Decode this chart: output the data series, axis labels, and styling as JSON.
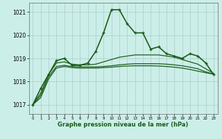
{
  "title": "Graphe pression niveau de la mer (hPa)",
  "background_color": "#cceee8",
  "grid_color": "#aacccc",
  "line_color": "#1a5c1a",
  "xlim": [
    -0.5,
    23.5
  ],
  "ylim": [
    1016.6,
    1021.4
  ],
  "yticks": [
    1017,
    1018,
    1019,
    1020,
    1021
  ],
  "xticks": [
    0,
    1,
    2,
    3,
    4,
    5,
    6,
    7,
    8,
    9,
    10,
    11,
    12,
    13,
    14,
    15,
    16,
    17,
    18,
    19,
    20,
    21,
    22,
    23
  ],
  "series": [
    {
      "x": [
        0,
        1,
        2,
        3,
        4,
        5,
        6,
        7,
        8,
        9,
        10,
        11,
        12,
        13,
        14,
        15,
        16,
        17,
        18,
        19,
        20,
        21,
        22,
        23
      ],
      "y": [
        1017.0,
        1017.7,
        1018.3,
        1018.9,
        1019.0,
        1018.7,
        1018.7,
        1018.8,
        1019.3,
        1020.1,
        1021.1,
        1021.1,
        1020.5,
        1020.1,
        1020.1,
        1019.4,
        1019.5,
        1019.2,
        1019.1,
        1019.0,
        1019.2,
        1019.1,
        1018.8,
        1018.3
      ],
      "marker": "+",
      "lw": 1.2
    },
    {
      "x": [
        0,
        1,
        2,
        3,
        4,
        5,
        6,
        7,
        8,
        9,
        10,
        11,
        12,
        13,
        14,
        15,
        16,
        17,
        18,
        19,
        20,
        21,
        22,
        23
      ],
      "y": [
        1017.0,
        1017.5,
        1018.3,
        1018.8,
        1018.85,
        1018.75,
        1018.72,
        1018.72,
        1018.75,
        1018.85,
        1018.95,
        1019.05,
        1019.1,
        1019.15,
        1019.15,
        1019.15,
        1019.15,
        1019.1,
        1019.05,
        1018.95,
        1018.85,
        1018.75,
        1018.55,
        1018.35
      ],
      "marker": null,
      "lw": 0.9
    },
    {
      "x": [
        0,
        1,
        2,
        3,
        4,
        5,
        6,
        7,
        8,
        9,
        10,
        11,
        12,
        13,
        14,
        15,
        16,
        17,
        18,
        19,
        20,
        21,
        22,
        23
      ],
      "y": [
        1017.0,
        1017.4,
        1018.2,
        1018.65,
        1018.7,
        1018.65,
        1018.63,
        1018.63,
        1018.63,
        1018.65,
        1018.68,
        1018.72,
        1018.75,
        1018.77,
        1018.77,
        1018.77,
        1018.77,
        1018.75,
        1018.72,
        1018.68,
        1018.62,
        1018.55,
        1018.42,
        1018.32
      ],
      "marker": null,
      "lw": 0.9
    },
    {
      "x": [
        0,
        1,
        2,
        3,
        4,
        5,
        6,
        7,
        8,
        9,
        10,
        11,
        12,
        13,
        14,
        15,
        16,
        17,
        18,
        19,
        20,
        21,
        22,
        23
      ],
      "y": [
        1017.0,
        1017.3,
        1018.1,
        1018.58,
        1018.65,
        1018.6,
        1018.58,
        1018.58,
        1018.58,
        1018.6,
        1018.62,
        1018.65,
        1018.67,
        1018.68,
        1018.68,
        1018.68,
        1018.67,
        1018.65,
        1018.62,
        1018.58,
        1018.52,
        1018.45,
        1018.38,
        1018.32
      ],
      "marker": null,
      "lw": 0.9
    }
  ]
}
